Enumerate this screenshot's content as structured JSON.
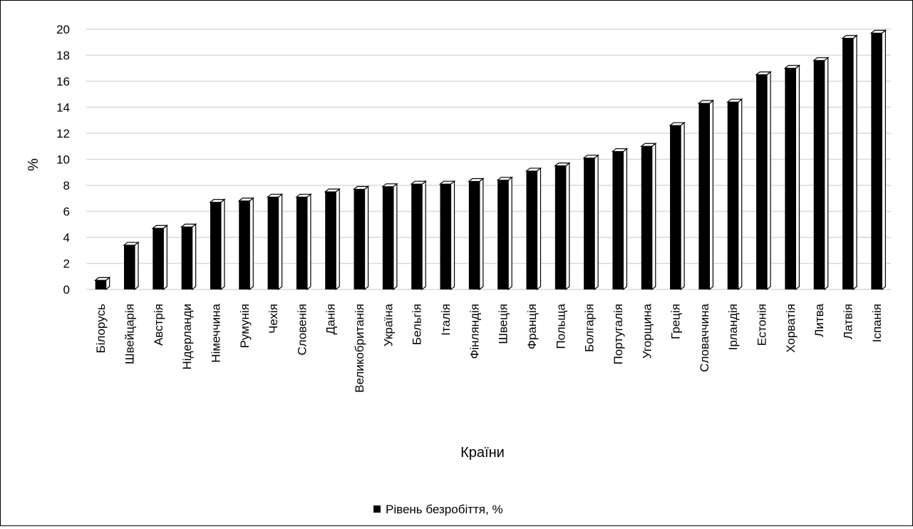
{
  "chart_data": {
    "type": "bar",
    "style": "3d-column",
    "xlabel": "Країни",
    "ylabel": "%",
    "ylim": [
      0,
      20
    ],
    "yticks": [
      0,
      2,
      4,
      6,
      8,
      10,
      12,
      14,
      16,
      18,
      20
    ],
    "grid": true,
    "legend_position": "bottom",
    "colors": {
      "bar": "#000000",
      "grid": "#d9d9d9",
      "text": "#000000"
    },
    "categories": [
      "Білорусь",
      "Швейцарія",
      "Австрія",
      "Нідерланди",
      "Німеччина",
      "Румунія",
      "Чехія",
      "Словенія",
      "Данія",
      "Великобританія",
      "Україна",
      "Бельгія",
      "Італія",
      "Фінляндія",
      "Швеція",
      "Франція",
      "Польща",
      "Болгарія",
      "Португалія",
      "Угорщина",
      "Греція",
      "Словаччина",
      "Ірландія",
      "Естонія",
      "Хорватія",
      "Литва",
      "Латвія",
      "Іспанія"
    ],
    "series": [
      {
        "name": "Рівень безробіття, %",
        "values": [
          0.7,
          3.4,
          4.7,
          4.8,
          6.7,
          6.8,
          7.1,
          7.1,
          7.5,
          7.7,
          7.9,
          8.1,
          8.1,
          8.3,
          8.4,
          9.1,
          9.5,
          10.1,
          10.6,
          11.0,
          12.6,
          14.3,
          14.4,
          16.5,
          17.0,
          17.6,
          19.3,
          19.7
        ]
      }
    ]
  }
}
